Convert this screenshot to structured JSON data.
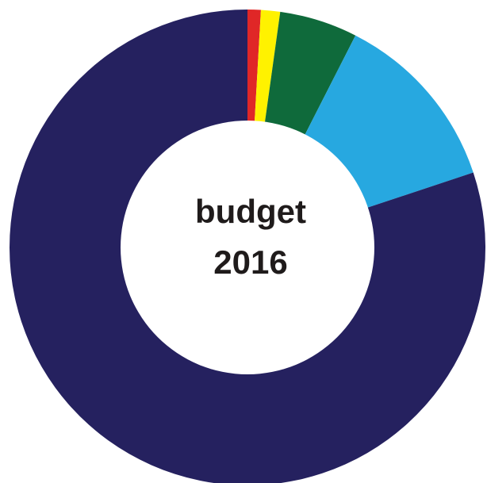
{
  "chart_data": {
    "type": "pie",
    "variant": "donut",
    "center_text": {
      "line1": "budget",
      "line2": "2016"
    },
    "slices": [
      {
        "value": 0.9,
        "color": "#e02727"
      },
      {
        "value": 1.3,
        "color": "#fff200"
      },
      {
        "value": 5.3,
        "color": "#0f6a3b"
      },
      {
        "value": 12.4,
        "color": "#27a8e0"
      },
      {
        "value": 80.1,
        "color": "#25215f"
      }
    ],
    "start_angle_deg": 0,
    "direction": "clockwise"
  }
}
